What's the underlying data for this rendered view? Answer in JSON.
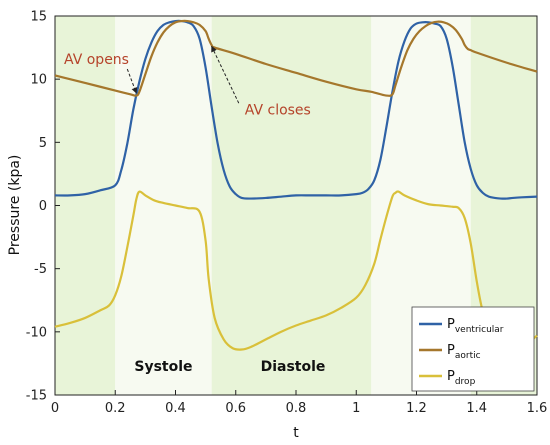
{
  "chart_data": {
    "type": "line",
    "xlabel": "t",
    "ylabel": "Pressure (kpa)",
    "xlim": [
      0,
      1.6
    ],
    "ylim": [
      -15,
      15
    ],
    "xticks": [
      "0",
      "0.2",
      "0.4",
      "0.6",
      "0.8",
      "1",
      "1.2",
      "1.4",
      "1.6"
    ],
    "xtick_values": [
      0,
      0.2,
      0.4,
      0.6,
      0.8,
      1.0,
      1.2,
      1.4,
      1.6
    ],
    "yticks": [
      "15",
      "10",
      "5",
      "0",
      "-5",
      "-10",
      "-15"
    ],
    "ytick_values": [
      15,
      10,
      5,
      0,
      -5,
      -10,
      -15
    ],
    "background_bands": [
      {
        "from": 0.0,
        "to": 0.2,
        "color": "#e8f4d8"
      },
      {
        "from": 0.2,
        "to": 0.52,
        "color": "#f7faf1"
      },
      {
        "from": 0.52,
        "to": 1.05,
        "color": "#e8f4d8"
      },
      {
        "from": 1.05,
        "to": 1.38,
        "color": "#f7faf1"
      },
      {
        "from": 1.38,
        "to": 1.6,
        "color": "#e8f4d8"
      }
    ],
    "phase_labels": [
      {
        "text": "Systole",
        "x": 0.36,
        "y": -12.7
      },
      {
        "text": "Diastole",
        "x": 0.79,
        "y": -12.7
      }
    ],
    "annotations": [
      {
        "text": "AV opens",
        "text_x": 0.03,
        "text_y": 11.2,
        "arrow_from": [
          0.24,
          10.8
        ],
        "arrow_to": [
          0.27,
          8.9
        ]
      },
      {
        "text": "AV closes",
        "text_x": 0.63,
        "text_y": 7.2,
        "arrow_from": [
          0.61,
          8.1
        ],
        "arrow_to": [
          0.52,
          12.6
        ]
      }
    ],
    "legend": {
      "position": "bottom-right"
    },
    "series": [
      {
        "name": "P",
        "subscript": "ventricular",
        "color": "#2f62a6",
        "x": [
          0,
          0.05,
          0.1,
          0.15,
          0.2,
          0.22,
          0.24,
          0.26,
          0.28,
          0.3,
          0.32,
          0.34,
          0.36,
          0.38,
          0.4,
          0.42,
          0.44,
          0.46,
          0.48,
          0.5,
          0.52,
          0.54,
          0.56,
          0.58,
          0.6,
          0.62,
          0.65,
          0.7,
          0.75,
          0.8,
          0.85,
          0.9,
          0.95,
          1.0,
          1.02,
          1.04,
          1.06,
          1.08,
          1.1,
          1.12,
          1.14,
          1.16,
          1.18,
          1.2,
          1.22,
          1.24,
          1.26,
          1.28,
          1.3,
          1.32,
          1.34,
          1.36,
          1.38,
          1.4,
          1.42,
          1.44,
          1.46,
          1.48,
          1.5,
          1.52,
          1.55,
          1.6
        ],
        "values": [
          0.8,
          0.8,
          0.9,
          1.2,
          1.6,
          2.8,
          4.9,
          7.6,
          9.8,
          11.6,
          12.9,
          13.8,
          14.3,
          14.5,
          14.6,
          14.6,
          14.5,
          14.2,
          13.2,
          10.9,
          7.8,
          4.9,
          2.8,
          1.5,
          0.9,
          0.6,
          0.55,
          0.6,
          0.7,
          0.8,
          0.8,
          0.8,
          0.8,
          0.9,
          1.0,
          1.3,
          2.0,
          3.6,
          6.2,
          9.0,
          11.4,
          13.0,
          14.0,
          14.4,
          14.5,
          14.5,
          14.4,
          14.2,
          13.2,
          11.0,
          8.0,
          5.0,
          2.9,
          1.6,
          1.0,
          0.7,
          0.6,
          0.55,
          0.55,
          0.6,
          0.65,
          0.7
        ]
      },
      {
        "name": "P",
        "subscript": "aortic",
        "color": "#a5772c",
        "x": [
          0,
          0.05,
          0.1,
          0.15,
          0.2,
          0.25,
          0.27,
          0.28,
          0.3,
          0.32,
          0.34,
          0.36,
          0.38,
          0.4,
          0.42,
          0.44,
          0.46,
          0.48,
          0.5,
          0.51,
          0.52,
          0.53,
          0.6,
          0.7,
          0.8,
          0.9,
          1.0,
          1.05,
          1.1,
          1.12,
          1.13,
          1.15,
          1.17,
          1.19,
          1.21,
          1.23,
          1.25,
          1.27,
          1.29,
          1.31,
          1.33,
          1.35,
          1.36,
          1.37,
          1.38,
          1.4,
          1.5,
          1.6
        ],
        "values": [
          10.3,
          10.0,
          9.7,
          9.4,
          9.1,
          8.8,
          8.7,
          9.0,
          10.4,
          11.8,
          12.9,
          13.7,
          14.2,
          14.5,
          14.6,
          14.6,
          14.5,
          14.3,
          13.8,
          13.2,
          12.7,
          12.5,
          12.0,
          11.2,
          10.5,
          9.8,
          9.2,
          9.0,
          8.7,
          8.8,
          9.5,
          11.0,
          12.3,
          13.2,
          13.8,
          14.2,
          14.45,
          14.55,
          14.5,
          14.3,
          13.9,
          13.2,
          12.7,
          12.4,
          12.3,
          12.1,
          11.3,
          10.6
        ]
      },
      {
        "name": "P",
        "subscript": "drop",
        "color": "#d9c03a",
        "x": [
          0,
          0.05,
          0.1,
          0.15,
          0.18,
          0.2,
          0.22,
          0.24,
          0.26,
          0.27,
          0.28,
          0.3,
          0.33,
          0.36,
          0.4,
          0.44,
          0.48,
          0.5,
          0.51,
          0.53,
          0.56,
          0.59,
          0.62,
          0.65,
          0.7,
          0.75,
          0.8,
          0.85,
          0.9,
          0.95,
          1.0,
          1.03,
          1.06,
          1.08,
          1.1,
          1.12,
          1.13,
          1.14,
          1.16,
          1.2,
          1.24,
          1.28,
          1.32,
          1.34,
          1.36,
          1.38,
          1.4,
          1.42,
          1.45,
          1.5,
          1.55,
          1.6
        ],
        "values": [
          -9.6,
          -9.3,
          -8.9,
          -8.3,
          -7.9,
          -7.1,
          -5.6,
          -3.3,
          -0.8,
          0.5,
          1.1,
          0.8,
          0.4,
          0.2,
          0.0,
          -0.2,
          -0.5,
          -2.8,
          -5.8,
          -8.9,
          -10.6,
          -11.3,
          -11.4,
          -11.2,
          -10.6,
          -10.0,
          -9.5,
          -9.1,
          -8.7,
          -8.1,
          -7.3,
          -6.3,
          -4.6,
          -2.7,
          -0.9,
          0.7,
          1.0,
          1.1,
          0.8,
          0.4,
          0.1,
          0.0,
          -0.1,
          -0.2,
          -1.0,
          -3.0,
          -6.0,
          -8.4,
          -10.6,
          -11.4,
          -11.2,
          -10.3
        ]
      }
    ]
  }
}
